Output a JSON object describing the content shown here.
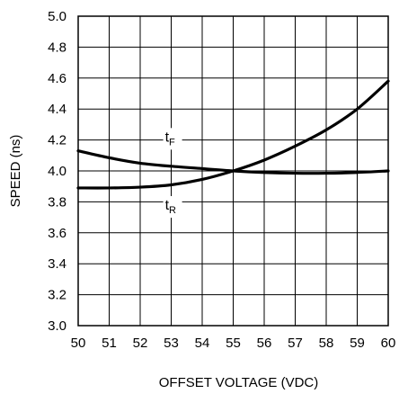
{
  "chart_data": {
    "type": "line",
    "title": "",
    "xlabel": "OFFSET VOLTAGE (VDC)",
    "ylabel": "SPEED (ns)",
    "xlim": [
      50,
      60
    ],
    "ylim": [
      3.0,
      5.0
    ],
    "x_ticks": [
      50,
      51,
      52,
      53,
      54,
      55,
      56,
      57,
      58,
      59,
      60
    ],
    "y_ticks": [
      "3.0",
      "3.2",
      "3.4",
      "3.6",
      "3.8",
      "4.0",
      "4.2",
      "4.4",
      "4.6",
      "4.8",
      "5.0"
    ],
    "grid": true,
    "series": [
      {
        "name": "tF",
        "label_main": "t",
        "label_sub": "F",
        "label_pos": [
          52.8,
          4.19
        ],
        "x": [
          50,
          51,
          52,
          53,
          54,
          55,
          56,
          57,
          58,
          59,
          60
        ],
        "y": [
          4.13,
          4.085,
          4.05,
          4.03,
          4.015,
          4.0,
          3.99,
          3.985,
          3.985,
          3.99,
          4.0
        ]
      },
      {
        "name": "tR",
        "label_main": "t",
        "label_sub": "R",
        "label_pos": [
          52.8,
          3.75
        ],
        "x": [
          50,
          51,
          52,
          53,
          54,
          55,
          56,
          57,
          58,
          59,
          60
        ],
        "y": [
          3.89,
          3.89,
          3.895,
          3.91,
          3.945,
          4.0,
          4.07,
          4.16,
          4.265,
          4.4,
          4.58
        ]
      }
    ]
  }
}
